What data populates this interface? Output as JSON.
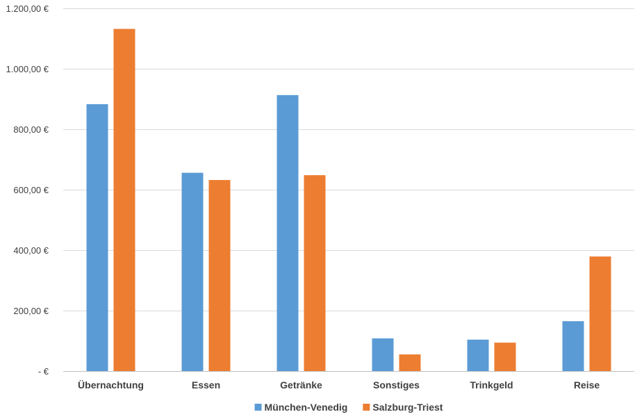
{
  "chart_data": {
    "type": "bar",
    "title": "",
    "xlabel": "",
    "ylabel": "",
    "categories": [
      "Übernachtung",
      "Essen",
      "Getränke",
      "Sonstiges",
      "Trinkgeld",
      "Reise"
    ],
    "series": [
      {
        "name": "München-Venedig",
        "color": "#5B9BD5",
        "values": [
          883,
          656,
          913,
          108,
          104,
          165
        ]
      },
      {
        "name": "Salzburg-Triest",
        "color": "#ED7D31",
        "values": [
          1132,
          632,
          648,
          55,
          94,
          379
        ]
      }
    ],
    "ylim": [
      0,
      1200
    ],
    "y_ticks": [
      {
        "value": 0,
        "label": "-   €"
      },
      {
        "value": 200,
        "label": "200,00 €"
      },
      {
        "value": 400,
        "label": "400,00 €"
      },
      {
        "value": 600,
        "label": "600,00 €"
      },
      {
        "value": 800,
        "label": "800,00 €"
      },
      {
        "value": 1000,
        "label": "1.000,00 €"
      },
      {
        "value": 1200,
        "label": "1.200,00 €"
      }
    ],
    "grid": true,
    "legend_position": "bottom",
    "gridline_color": "#D9D9D9",
    "axis_color": "#BFBFBF"
  }
}
